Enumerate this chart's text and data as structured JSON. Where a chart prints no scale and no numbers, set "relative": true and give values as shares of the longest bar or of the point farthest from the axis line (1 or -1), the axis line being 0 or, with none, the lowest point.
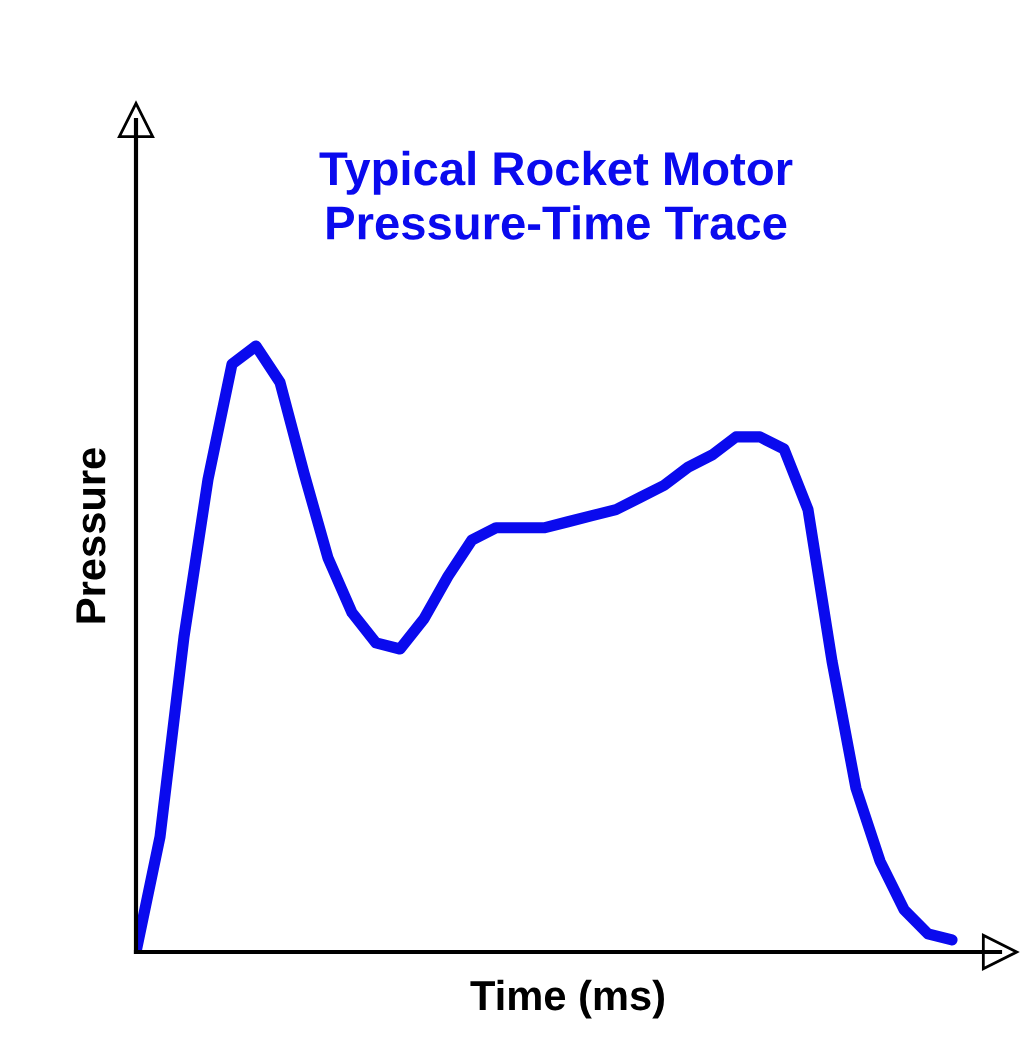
{
  "chart_data": {
    "type": "line",
    "title": "Typical Rocket Motor\nPressure-Time Trace",
    "xlabel": "Time (ms)",
    "ylabel": "Pressure",
    "relative": true,
    "legend": false,
    "marker": "none",
    "line_style": "solid",
    "categories": [
      null,
      null,
      null,
      null,
      null,
      null,
      null,
      null,
      null,
      null,
      null,
      null,
      null,
      null,
      null,
      null,
      null,
      null,
      null,
      null,
      null,
      null,
      null,
      null,
      null,
      null,
      null,
      null,
      null,
      null,
      null,
      null,
      null,
      null,
      null
    ],
    "series": [
      {
        "color": "#0a0aee",
        "values": [
          0,
          0.19,
          0.52,
          0.78,
          0.97,
          1,
          0.94,
          0.79,
          0.65,
          0.56,
          0.51,
          0.5,
          0.55,
          0.62,
          0.68,
          0.7,
          0.7,
          0.7,
          0.71,
          0.72,
          0.73,
          0.75,
          0.77,
          0.8,
          0.82,
          0.85,
          0.85,
          0.83,
          0.73,
          0.48,
          0.27,
          0.15,
          0.07,
          0.03,
          0.02
        ]
      }
    ]
  }
}
